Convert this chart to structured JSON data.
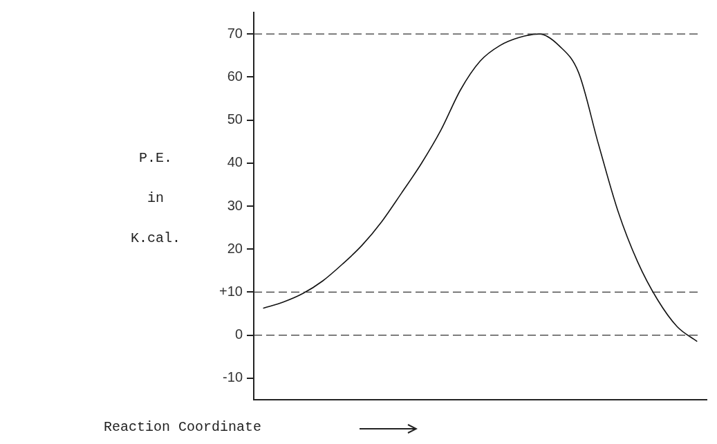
{
  "chart_data": {
    "type": "line",
    "xlabel": "Reaction Coordinate",
    "ylabel": "P.E. in K.cal.",
    "categories": [
      null,
      null,
      null,
      null,
      null,
      null,
      null,
      null,
      null,
      null,
      null,
      null,
      null,
      null,
      null,
      null,
      null,
      null,
      null,
      null,
      null,
      null,
      null
    ],
    "series": [
      {
        "color": "#111111",
        "values": [
          6.3,
          7.7,
          9.7,
          12.6,
          16.5,
          20.9,
          26.4,
          33,
          39.8,
          47.6,
          57,
          63.7,
          67.3,
          69.2,
          70,
          67.3,
          61,
          44.5,
          28.8,
          17,
          8.3,
          2,
          -1.4
        ]
      }
    ],
    "ylim": [
      -15,
      75
    ],
    "yticks": [
      -10,
      0,
      {
        "value": 10,
        "label": "+10"
      },
      20,
      30,
      40,
      50,
      60,
      70
    ],
    "ref_lines": [
      {
        "axis": "y",
        "value": 70,
        "line_style": "dashed"
      },
      {
        "axis": "y",
        "value": 10,
        "line_style": "dashed"
      },
      {
        "axis": "y",
        "value": 0,
        "line_style": "dashed"
      }
    ],
    "grid": false,
    "legend": false,
    "marker": "none",
    "line_style": "solid",
    "tick_labels": "y"
  }
}
